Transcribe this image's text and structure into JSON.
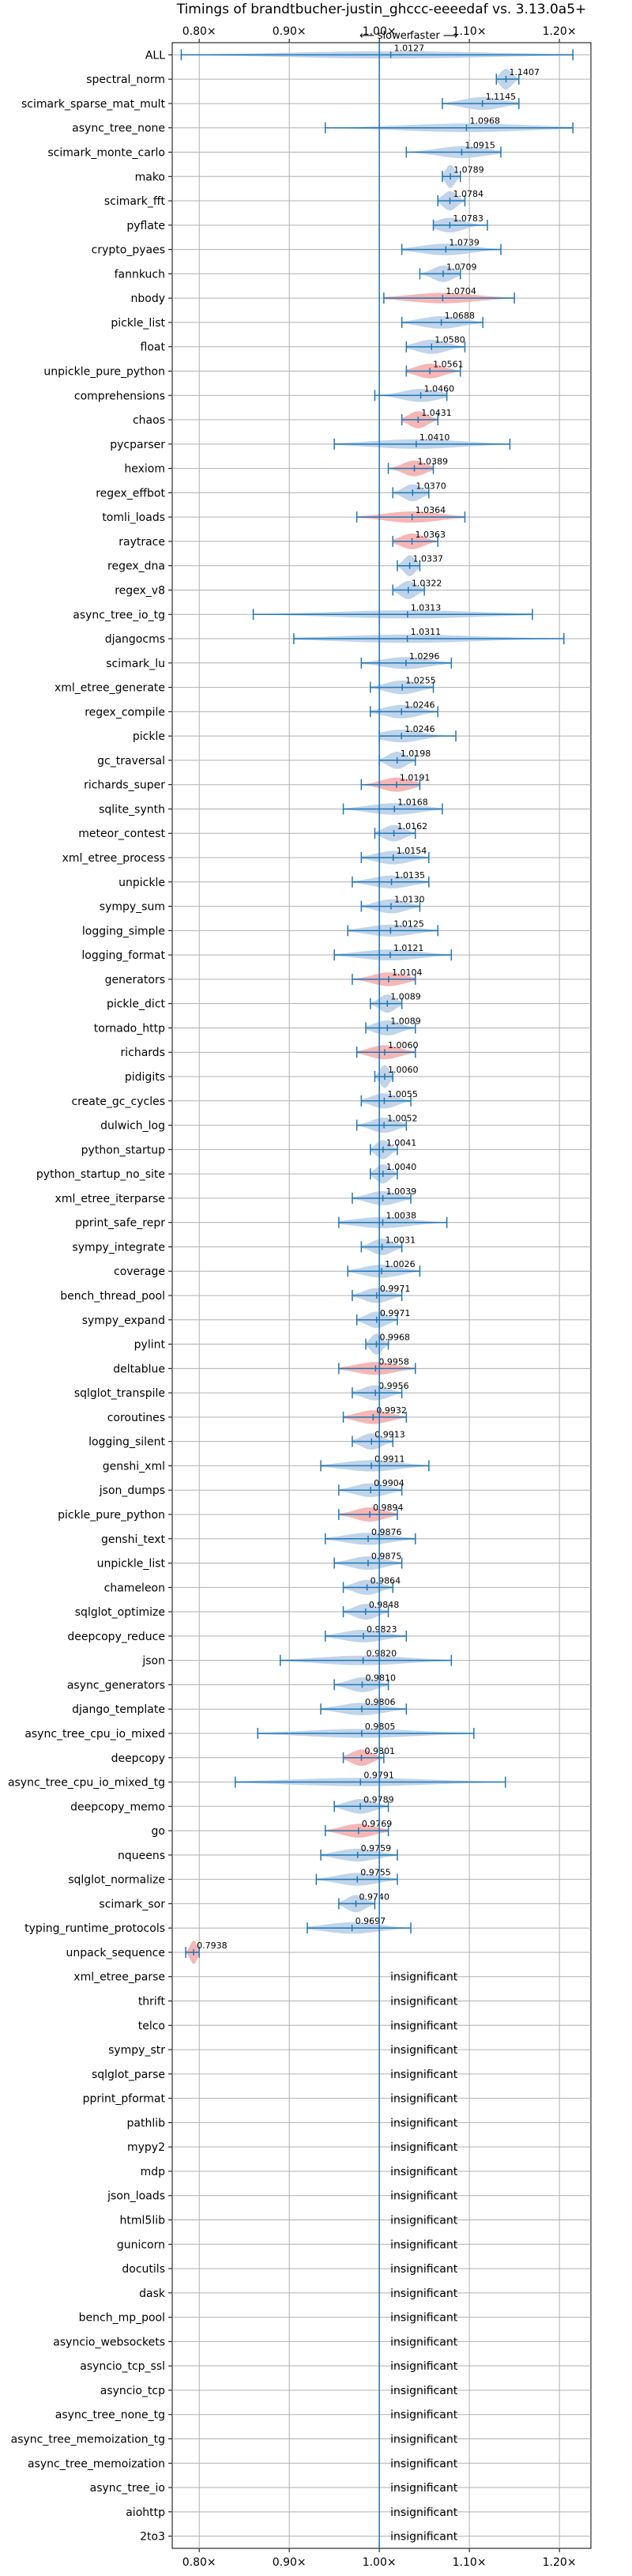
{
  "chart_data": {
    "type": "violin",
    "title": "Timings of brandtbucher-justin_ghccc-eeeedaf vs. 3.13.0a5+",
    "subtitle_left": "⟵ slower",
    "subtitle_right": "faster ⟶",
    "xlim": [
      0.77,
      1.235
    ],
    "xticks": [
      0.8,
      0.9,
      1.0,
      1.1,
      1.2
    ],
    "xtick_labels": [
      "0.80×",
      "0.90×",
      "1.00×",
      "1.10×",
      "1.20×"
    ],
    "insignificant_label": "insignificant",
    "grid": true,
    "colors": {
      "faster": "#b5cde6",
      "slower": "#f4a9a9",
      "line": "#1f77b4"
    },
    "benchmarks": [
      {
        "name": "ALL",
        "value": 1.0127,
        "min": 0.78,
        "max": 1.215,
        "color": "faster"
      },
      {
        "name": "spectral_norm",
        "value": 1.1407,
        "min": 1.13,
        "max": 1.155,
        "color": "faster"
      },
      {
        "name": "scimark_sparse_mat_mult",
        "value": 1.1145,
        "min": 1.07,
        "max": 1.155,
        "color": "faster"
      },
      {
        "name": "async_tree_none",
        "value": 1.0968,
        "min": 0.94,
        "max": 1.215,
        "color": "faster"
      },
      {
        "name": "scimark_monte_carlo",
        "value": 1.0915,
        "min": 1.03,
        "max": 1.135,
        "color": "faster"
      },
      {
        "name": "mako",
        "value": 1.0789,
        "min": 1.07,
        "max": 1.09,
        "color": "faster"
      },
      {
        "name": "scimark_fft",
        "value": 1.0784,
        "min": 1.065,
        "max": 1.095,
        "color": "faster"
      },
      {
        "name": "pyflate",
        "value": 1.0783,
        "min": 1.06,
        "max": 1.12,
        "color": "faster"
      },
      {
        "name": "crypto_pyaes",
        "value": 1.0739,
        "min": 1.025,
        "max": 1.135,
        "color": "faster"
      },
      {
        "name": "fannkuch",
        "value": 1.0709,
        "min": 1.045,
        "max": 1.09,
        "color": "faster"
      },
      {
        "name": "nbody",
        "value": 1.0704,
        "min": 1.005,
        "max": 1.15,
        "color": "slower"
      },
      {
        "name": "pickle_list",
        "value": 1.0688,
        "min": 1.025,
        "max": 1.115,
        "color": "faster"
      },
      {
        "name": "float",
        "value": 1.058,
        "min": 1.03,
        "max": 1.095,
        "color": "faster"
      },
      {
        "name": "unpickle_pure_python",
        "value": 1.0561,
        "min": 1.03,
        "max": 1.09,
        "color": "slower"
      },
      {
        "name": "comprehensions",
        "value": 1.046,
        "min": 0.995,
        "max": 1.075,
        "color": "faster"
      },
      {
        "name": "chaos",
        "value": 1.0431,
        "min": 1.025,
        "max": 1.065,
        "color": "slower"
      },
      {
        "name": "pycparser",
        "value": 1.041,
        "min": 0.95,
        "max": 1.145,
        "color": "faster"
      },
      {
        "name": "hexiom",
        "value": 1.0389,
        "min": 1.01,
        "max": 1.06,
        "color": "slower"
      },
      {
        "name": "regex_effbot",
        "value": 1.037,
        "min": 1.015,
        "max": 1.055,
        "color": "faster"
      },
      {
        "name": "tomli_loads",
        "value": 1.0364,
        "min": 0.975,
        "max": 1.095,
        "color": "slower"
      },
      {
        "name": "raytrace",
        "value": 1.0363,
        "min": 1.015,
        "max": 1.065,
        "color": "slower"
      },
      {
        "name": "regex_dna",
        "value": 1.0337,
        "min": 1.02,
        "max": 1.045,
        "color": "faster"
      },
      {
        "name": "regex_v8",
        "value": 1.0322,
        "min": 1.015,
        "max": 1.05,
        "color": "faster"
      },
      {
        "name": "async_tree_io_tg",
        "value": 1.0313,
        "min": 0.86,
        "max": 1.17,
        "color": "faster"
      },
      {
        "name": "djangocms",
        "value": 1.0311,
        "min": 0.905,
        "max": 1.205,
        "color": "faster"
      },
      {
        "name": "scimark_lu",
        "value": 1.0296,
        "min": 0.98,
        "max": 1.08,
        "color": "faster"
      },
      {
        "name": "xml_etree_generate",
        "value": 1.0255,
        "min": 0.99,
        "max": 1.06,
        "color": "faster"
      },
      {
        "name": "regex_compile",
        "value": 1.0246,
        "min": 0.99,
        "max": 1.065,
        "color": "faster"
      },
      {
        "name": "pickle",
        "value": 1.0246,
        "min": 1.0,
        "max": 1.085,
        "color": "faster"
      },
      {
        "name": "gc_traversal",
        "value": 1.0198,
        "min": 1.0,
        "max": 1.04,
        "color": "faster"
      },
      {
        "name": "richards_super",
        "value": 1.0191,
        "min": 0.98,
        "max": 1.045,
        "color": "slower"
      },
      {
        "name": "sqlite_synth",
        "value": 1.0168,
        "min": 0.96,
        "max": 1.07,
        "color": "faster"
      },
      {
        "name": "meteor_contest",
        "value": 1.0162,
        "min": 0.995,
        "max": 1.04,
        "color": "faster"
      },
      {
        "name": "xml_etree_process",
        "value": 1.0154,
        "min": 0.98,
        "max": 1.055,
        "color": "faster"
      },
      {
        "name": "unpickle",
        "value": 1.0135,
        "min": 0.97,
        "max": 1.055,
        "color": "faster"
      },
      {
        "name": "sympy_sum",
        "value": 1.013,
        "min": 0.98,
        "max": 1.045,
        "color": "faster"
      },
      {
        "name": "logging_simple",
        "value": 1.0125,
        "min": 0.965,
        "max": 1.065,
        "color": "faster"
      },
      {
        "name": "logging_format",
        "value": 1.0121,
        "min": 0.95,
        "max": 1.08,
        "color": "faster"
      },
      {
        "name": "generators",
        "value": 1.0104,
        "min": 0.97,
        "max": 1.04,
        "color": "slower"
      },
      {
        "name": "pickle_dict",
        "value": 1.0089,
        "min": 0.99,
        "max": 1.025,
        "color": "faster"
      },
      {
        "name": "tornado_http",
        "value": 1.0089,
        "min": 0.985,
        "max": 1.04,
        "color": "faster"
      },
      {
        "name": "richards",
        "value": 1.006,
        "min": 0.975,
        "max": 1.04,
        "color": "slower"
      },
      {
        "name": "pidigits",
        "value": 1.006,
        "min": 0.995,
        "max": 1.015,
        "color": "faster"
      },
      {
        "name": "create_gc_cycles",
        "value": 1.0055,
        "min": 0.98,
        "max": 1.035,
        "color": "faster"
      },
      {
        "name": "dulwich_log",
        "value": 1.0052,
        "min": 0.975,
        "max": 1.03,
        "color": "faster"
      },
      {
        "name": "python_startup",
        "value": 1.0041,
        "min": 0.99,
        "max": 1.02,
        "color": "faster"
      },
      {
        "name": "python_startup_no_site",
        "value": 1.004,
        "min": 0.99,
        "max": 1.02,
        "color": "faster"
      },
      {
        "name": "xml_etree_iterparse",
        "value": 1.0039,
        "min": 0.97,
        "max": 1.035,
        "color": "faster"
      },
      {
        "name": "pprint_safe_repr",
        "value": 1.0038,
        "min": 0.955,
        "max": 1.075,
        "color": "faster"
      },
      {
        "name": "sympy_integrate",
        "value": 1.0031,
        "min": 0.98,
        "max": 1.025,
        "color": "faster"
      },
      {
        "name": "coverage",
        "value": 1.0026,
        "min": 0.965,
        "max": 1.045,
        "color": "faster"
      },
      {
        "name": "bench_thread_pool",
        "value": 0.9971,
        "min": 0.97,
        "max": 1.025,
        "color": "faster"
      },
      {
        "name": "sympy_expand",
        "value": 0.9971,
        "min": 0.975,
        "max": 1.02,
        "color": "faster"
      },
      {
        "name": "pylint",
        "value": 0.9968,
        "min": 0.985,
        "max": 1.01,
        "color": "faster"
      },
      {
        "name": "deltablue",
        "value": 0.9958,
        "min": 0.955,
        "max": 1.04,
        "color": "slower"
      },
      {
        "name": "sqlglot_transpile",
        "value": 0.9956,
        "min": 0.97,
        "max": 1.025,
        "color": "faster"
      },
      {
        "name": "coroutines",
        "value": 0.9932,
        "min": 0.96,
        "max": 1.03,
        "color": "slower"
      },
      {
        "name": "logging_silent",
        "value": 0.9913,
        "min": 0.97,
        "max": 1.015,
        "color": "faster"
      },
      {
        "name": "genshi_xml",
        "value": 0.9911,
        "min": 0.935,
        "max": 1.055,
        "color": "faster"
      },
      {
        "name": "json_dumps",
        "value": 0.9904,
        "min": 0.955,
        "max": 1.025,
        "color": "faster"
      },
      {
        "name": "pickle_pure_python",
        "value": 0.9894,
        "min": 0.955,
        "max": 1.02,
        "color": "slower"
      },
      {
        "name": "genshi_text",
        "value": 0.9876,
        "min": 0.94,
        "max": 1.04,
        "color": "faster"
      },
      {
        "name": "unpickle_list",
        "value": 0.9875,
        "min": 0.95,
        "max": 1.025,
        "color": "faster"
      },
      {
        "name": "chameleon",
        "value": 0.9864,
        "min": 0.96,
        "max": 1.015,
        "color": "faster"
      },
      {
        "name": "sqlglot_optimize",
        "value": 0.9848,
        "min": 0.96,
        "max": 1.01,
        "color": "faster"
      },
      {
        "name": "deepcopy_reduce",
        "value": 0.9823,
        "min": 0.94,
        "max": 1.03,
        "color": "faster"
      },
      {
        "name": "json",
        "value": 0.982,
        "min": 0.89,
        "max": 1.08,
        "color": "faster"
      },
      {
        "name": "async_generators",
        "value": 0.981,
        "min": 0.95,
        "max": 1.01,
        "color": "faster"
      },
      {
        "name": "django_template",
        "value": 0.9806,
        "min": 0.935,
        "max": 1.03,
        "color": "faster"
      },
      {
        "name": "async_tree_cpu_io_mixed",
        "value": 0.9805,
        "min": 0.865,
        "max": 1.105,
        "color": "faster"
      },
      {
        "name": "deepcopy",
        "value": 0.9801,
        "min": 0.96,
        "max": 1.005,
        "color": "slower"
      },
      {
        "name": "async_tree_cpu_io_mixed_tg",
        "value": 0.9791,
        "min": 0.84,
        "max": 1.14,
        "color": "faster"
      },
      {
        "name": "deepcopy_memo",
        "value": 0.9789,
        "min": 0.95,
        "max": 1.01,
        "color": "faster"
      },
      {
        "name": "go",
        "value": 0.9769,
        "min": 0.94,
        "max": 1.01,
        "color": "slower"
      },
      {
        "name": "nqueens",
        "value": 0.9759,
        "min": 0.935,
        "max": 1.02,
        "color": "faster"
      },
      {
        "name": "sqlglot_normalize",
        "value": 0.9755,
        "min": 0.93,
        "max": 1.02,
        "color": "faster"
      },
      {
        "name": "scimark_sor",
        "value": 0.974,
        "min": 0.955,
        "max": 0.995,
        "color": "faster"
      },
      {
        "name": "typing_runtime_protocols",
        "value": 0.9697,
        "min": 0.92,
        "max": 1.035,
        "color": "faster"
      },
      {
        "name": "unpack_sequence",
        "value": 0.7938,
        "min": 0.785,
        "max": 0.8,
        "color": "slower"
      },
      {
        "name": "xml_etree_parse",
        "value": null
      },
      {
        "name": "thrift",
        "value": null
      },
      {
        "name": "telco",
        "value": null
      },
      {
        "name": "sympy_str",
        "value": null
      },
      {
        "name": "sqlglot_parse",
        "value": null
      },
      {
        "name": "pprint_pformat",
        "value": null
      },
      {
        "name": "pathlib",
        "value": null
      },
      {
        "name": "mypy2",
        "value": null
      },
      {
        "name": "mdp",
        "value": null
      },
      {
        "name": "json_loads",
        "value": null
      },
      {
        "name": "html5lib",
        "value": null
      },
      {
        "name": "gunicorn",
        "value": null
      },
      {
        "name": "docutils",
        "value": null
      },
      {
        "name": "dask",
        "value": null
      },
      {
        "name": "bench_mp_pool",
        "value": null
      },
      {
        "name": "asyncio_websockets",
        "value": null
      },
      {
        "name": "asyncio_tcp_ssl",
        "value": null
      },
      {
        "name": "asyncio_tcp",
        "value": null
      },
      {
        "name": "async_tree_none_tg",
        "value": null
      },
      {
        "name": "async_tree_memoization_tg",
        "value": null
      },
      {
        "name": "async_tree_memoization",
        "value": null
      },
      {
        "name": "async_tree_io",
        "value": null
      },
      {
        "name": "aiohttp",
        "value": null
      },
      {
        "name": "2to3",
        "value": null
      }
    ]
  }
}
